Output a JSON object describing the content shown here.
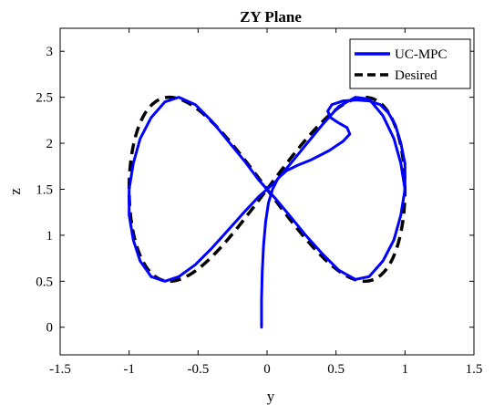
{
  "chart_data": {
    "type": "line",
    "title": "ZY Plane",
    "xlabel": "y",
    "ylabel": "z",
    "xlim": [
      -1.5,
      1.5
    ],
    "ylim": [
      -0.3,
      3.25
    ],
    "xticks": [
      -1.5,
      -1,
      -0.5,
      0,
      0.5,
      1,
      1.5
    ],
    "yticks": [
      0,
      0.5,
      1,
      1.5,
      2,
      2.5,
      3
    ],
    "xtick_labels": [
      "-1.5",
      "-1",
      "-0.5",
      "0",
      "0.5",
      "1",
      "1.5"
    ],
    "ytick_labels": [
      "0",
      "0.5",
      "1",
      "1.5",
      "2",
      "2.5",
      "3"
    ],
    "grid": false,
    "legend_position": "top-right",
    "series": [
      {
        "name": "UC-MPC",
        "color": "#0000ff",
        "style": "solid",
        "x": [
          -0.04,
          -0.04,
          -0.035,
          -0.025,
          -0.01,
          0.01,
          0.04,
          0.08,
          0.14,
          0.22,
          0.32,
          0.45,
          0.55,
          0.6,
          0.58,
          0.52,
          0.46,
          0.44,
          0.47,
          0.55,
          0.65,
          0.74,
          0.82,
          0.88,
          0.93,
          0.97,
          1.0,
          1.0,
          0.97,
          0.92,
          0.84,
          0.74,
          0.64,
          0.52,
          0.4,
          0.28,
          0.16,
          0.06,
          0.0,
          -0.06,
          -0.16,
          -0.28,
          -0.4,
          -0.52,
          -0.64,
          -0.74,
          -0.84,
          -0.92,
          -0.97,
          -1.0,
          -1.0,
          -0.97,
          -0.92,
          -0.84,
          -0.74,
          -0.64,
          -0.52,
          -0.4,
          -0.28,
          -0.16,
          -0.06,
          0.0,
          0.06,
          0.16,
          0.28,
          0.4,
          0.52,
          0.64,
          0.74,
          0.84,
          0.92,
          0.97,
          1.0
        ],
        "y": [
          0.0,
          0.3,
          0.6,
          0.9,
          1.15,
          1.35,
          1.5,
          1.62,
          1.7,
          1.76,
          1.82,
          1.92,
          2.02,
          2.1,
          2.17,
          2.22,
          2.28,
          2.35,
          2.42,
          2.46,
          2.47,
          2.46,
          2.42,
          2.33,
          2.2,
          2.0,
          1.78,
          1.5,
          1.22,
          0.95,
          0.72,
          0.55,
          0.52,
          0.62,
          0.8,
          1.0,
          1.22,
          1.4,
          1.5,
          1.6,
          1.8,
          2.02,
          2.24,
          2.42,
          2.5,
          2.45,
          2.28,
          2.05,
          1.78,
          1.5,
          1.22,
          0.95,
          0.72,
          0.55,
          0.5,
          0.55,
          0.68,
          0.86,
          1.06,
          1.26,
          1.42,
          1.5,
          1.58,
          1.76,
          1.98,
          2.2,
          2.4,
          2.5,
          2.48,
          2.3,
          2.05,
          1.78,
          1.5
        ]
      },
      {
        "name": "Desired",
        "color": "#000000",
        "style": "dashed",
        "param": "y = sin(t), z = 1.5 + sin(2t), t in [0, 2π]"
      }
    ]
  }
}
